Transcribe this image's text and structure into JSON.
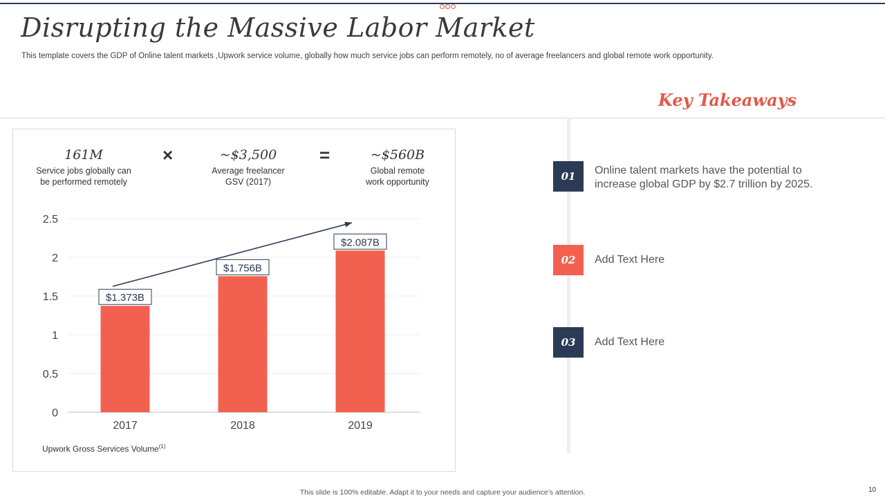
{
  "slide": {
    "title": "Disrupting the Massive Labor Market",
    "subtitle": "This template covers the GDP of Online talent markets ,Upwork service volume, globally how much service jobs can perform remotely, no of average freelancers and global remote work opportunity.",
    "footer": "This slide is 100% editable.  Adapt it to your needs and capture your audience’s attention.",
    "page_number": "10"
  },
  "metrics": [
    {
      "value": "161M",
      "label_line1": "Service jobs globally can",
      "label_line2": "be performed  remotely"
    },
    {
      "value": "~$3,500",
      "label_line1": "Average freelancer",
      "label_line2": "GSV (2017)"
    },
    {
      "value": "~$560B",
      "label_line1": "Global remote",
      "label_line2": "work opportunity"
    }
  ],
  "operators": {
    "multiply": "×",
    "equals": "="
  },
  "chart_data": {
    "type": "bar",
    "categories": [
      "2017",
      "2018",
      "2019"
    ],
    "values": [
      1.373,
      1.756,
      2.087
    ],
    "data_labels": [
      "$1.373B",
      "$1.756B",
      "$2.087B"
    ],
    "ylim": [
      0,
      2.5
    ],
    "yticks": [
      "0",
      "0.5",
      "1",
      "1.5",
      "2",
      "2.5"
    ],
    "ytick_values": [
      0,
      0.5,
      1,
      1.5,
      2,
      2.5
    ],
    "xlabel": "Upwork Gross Services Volume",
    "xlabel_footnote": "(1)",
    "grid": true,
    "trend_arrow": true,
    "bar_color": "#f26150",
    "arrow_color": "#2b3a55"
  },
  "takeaways": {
    "title": "Key Takeaways",
    "items": [
      {
        "number": "01",
        "text": "Online talent markets have the potential to increase global GDP by $2.7 trillion by 2025.",
        "color": "#2b3a55"
      },
      {
        "number": "02",
        "text": "Add Text Here",
        "color": "#f26150"
      },
      {
        "number": "03",
        "text": "Add Text Here",
        "color": "#2b3a55"
      }
    ]
  }
}
